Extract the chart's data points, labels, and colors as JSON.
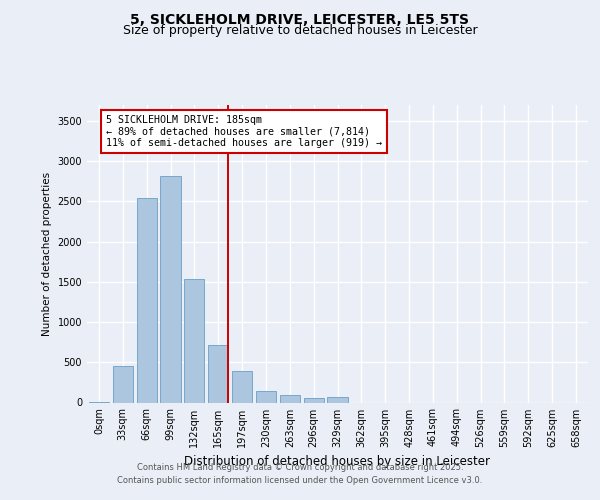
{
  "title_line1": "5, SICKLEHOLM DRIVE, LEICESTER, LE5 5TS",
  "title_line2": "Size of property relative to detached houses in Leicester",
  "xlabel": "Distribution of detached houses by size in Leicester",
  "ylabel": "Number of detached properties",
  "footer_line1": "Contains HM Land Registry data © Crown copyright and database right 2025.",
  "footer_line2": "Contains public sector information licensed under the Open Government Licence v3.0.",
  "bin_labels": [
    "0sqm",
    "33sqm",
    "66sqm",
    "99sqm",
    "132sqm",
    "165sqm",
    "197sqm",
    "230sqm",
    "263sqm",
    "296sqm",
    "329sqm",
    "362sqm",
    "395sqm",
    "428sqm",
    "461sqm",
    "494sqm",
    "526sqm",
    "559sqm",
    "592sqm",
    "625sqm",
    "658sqm"
  ],
  "bar_values": [
    10,
    460,
    2540,
    2820,
    1540,
    720,
    390,
    140,
    90,
    55,
    65,
    0,
    0,
    0,
    0,
    0,
    0,
    0,
    0,
    0,
    0
  ],
  "bar_color": "#adc6e0",
  "bar_edge_color": "#6a9fc8",
  "annotation_box_text": "5 SICKLEHOLM DRIVE: 185sqm\n← 89% of detached houses are smaller (7,814)\n11% of semi-detached houses are larger (919) →",
  "vline_x": 5.42,
  "vline_color": "#cc0000",
  "ylim": [
    0,
    3700
  ],
  "yticks": [
    0,
    500,
    1000,
    1500,
    2000,
    2500,
    3000,
    3500
  ],
  "bg_color": "#eaeff7",
  "plot_bg_color": "#eaeff7",
  "grid_color": "#ffffff",
  "title_fontsize": 10,
  "subtitle_fontsize": 9
}
